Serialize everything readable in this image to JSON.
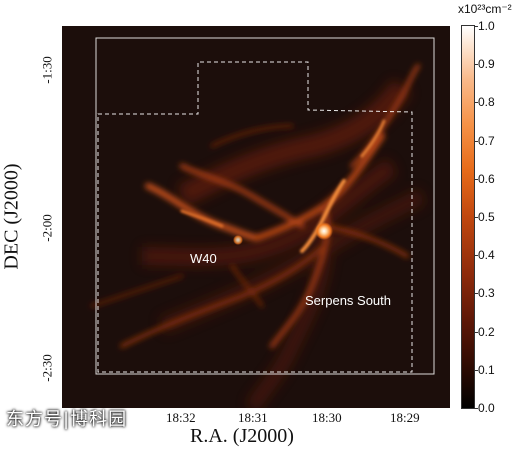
{
  "axes": {
    "ylabel": "DEC (J2000)",
    "xlabel": "R.A. (J2000)",
    "yticks": [
      "-1:30",
      "-2:00",
      "-2:30"
    ],
    "xticks": [
      "18:32",
      "18:31",
      "18:30",
      "18:29"
    ]
  },
  "colorbar": {
    "unit": "x10²³cm⁻²",
    "ticks": [
      "1.0",
      "0.9",
      "0.8",
      "0.7",
      "0.6",
      "0.5",
      "0.4",
      "0.3",
      "0.2",
      "0.1",
      "0.0"
    ],
    "colors": [
      "#000000",
      "#5a1606",
      "#c0470f",
      "#f59146",
      "#ffffff"
    ]
  },
  "labels": {
    "w40": "W40",
    "serpens": "Serpens South"
  },
  "watermark": "东方号|博科园"
}
